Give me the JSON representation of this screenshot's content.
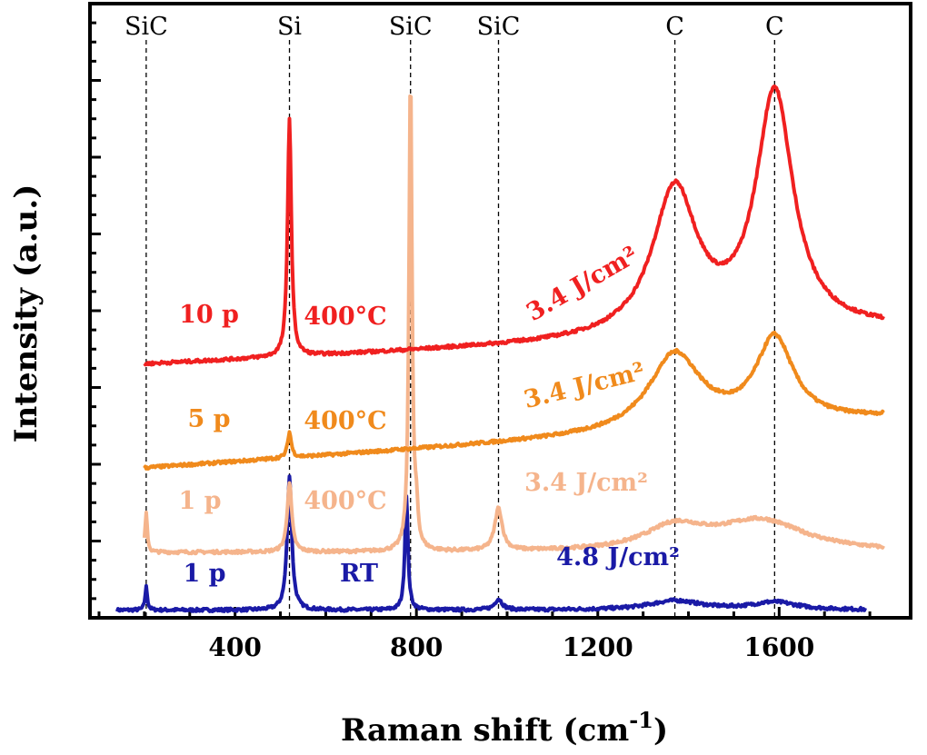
{
  "chart_data": {
    "type": "line",
    "title": "",
    "xlabel": "Raman shift (cm",
    "xlabel_sup": "-1",
    "xlabel_close": ")",
    "ylabel": "Intensity (a.u.)",
    "xlim": [
      80,
      1890
    ],
    "ylim": [
      0,
      8
    ],
    "x_ticks": [
      400,
      800,
      1200,
      1600
    ],
    "x_minor_step": 100,
    "y_ticks_labeled": false,
    "y_minor_step": 0.25,
    "grid": false,
    "legend": "none",
    "reference_lines": [
      {
        "x": 204,
        "label": "SiC"
      },
      {
        "x": 520,
        "label": "Si"
      },
      {
        "x": 787,
        "label": "SiC"
      },
      {
        "x": 981,
        "label": "SiC"
      },
      {
        "x": 1370,
        "label": "C"
      },
      {
        "x": 1590,
        "label": "C"
      }
    ],
    "series": [
      {
        "name": "1 p RT 4.8 J/cm²",
        "color": "#1a1aa6",
        "x_range": [
          140,
          1790
        ],
        "baseline": 0.1,
        "slope": 0.0,
        "peaks": [
          {
            "x": 204,
            "h": 0.3,
            "w": 3
          },
          {
            "x": 520,
            "h": 1.75,
            "w": 6
          },
          {
            "x": 778,
            "h": 1.5,
            "w": 4
          },
          {
            "x": 981,
            "h": 0.14,
            "w": 10
          },
          {
            "x": 1370,
            "h": 0.12,
            "w": 70
          },
          {
            "x": 1590,
            "h": 0.1,
            "w": 60
          }
        ],
        "labels": {
          "pulses": "1 p",
          "temperature": "RT",
          "fluence": "4.8 J/cm²"
        }
      },
      {
        "name": "1 p 400°C 3.4 J/cm²",
        "color": "#f5b48c",
        "x_range": [
          200,
          1830
        ],
        "baseline": 0.85,
        "slope": 0.0,
        "peaks": [
          {
            "x": 204,
            "h": 0.5,
            "w": 3
          },
          {
            "x": 520,
            "h": 0.9,
            "w": 6
          },
          {
            "x": 787,
            "h": 6.25,
            "w": 4
          },
          {
            "x": 800,
            "h": 0.4,
            "w": 4
          },
          {
            "x": 981,
            "h": 0.55,
            "w": 10
          },
          {
            "x": 1370,
            "h": 0.3,
            "w": 80
          },
          {
            "x": 1560,
            "h": 0.4,
            "w": 120
          }
        ],
        "labels": {
          "pulses": "1 p",
          "temperature": "400°C",
          "fluence": "3.4 J/cm²"
        }
      },
      {
        "name": "5 p 400°C 3.4 J/cm²",
        "color": "#f08a1c",
        "x_range": [
          200,
          1830
        ],
        "baseline": 1.95,
        "slope": 0.0004,
        "peaks": [
          {
            "x": 520,
            "h": 0.33,
            "w": 5
          },
          {
            "x": 1370,
            "h": 1.0,
            "w": 70
          },
          {
            "x": 1590,
            "h": 1.1,
            "w": 50
          }
        ],
        "labels": {
          "pulses": "5 p",
          "temperature": "400°C",
          "fluence": "3.4 J/cm²"
        }
      },
      {
        "name": "10 p 400°C 3.4 J/cm²",
        "color": "#f02020",
        "x_range": [
          200,
          1830
        ],
        "baseline": 3.3,
        "slope": 0.00028,
        "peaks": [
          {
            "x": 520,
            "h": 3.1,
            "w": 5
          },
          {
            "x": 1370,
            "h": 1.9,
            "w": 60
          },
          {
            "x": 1590,
            "h": 3.1,
            "w": 50
          }
        ],
        "labels": {
          "pulses": "10 p",
          "temperature": "400°C",
          "fluence": "3.4 J/cm²"
        }
      }
    ]
  }
}
